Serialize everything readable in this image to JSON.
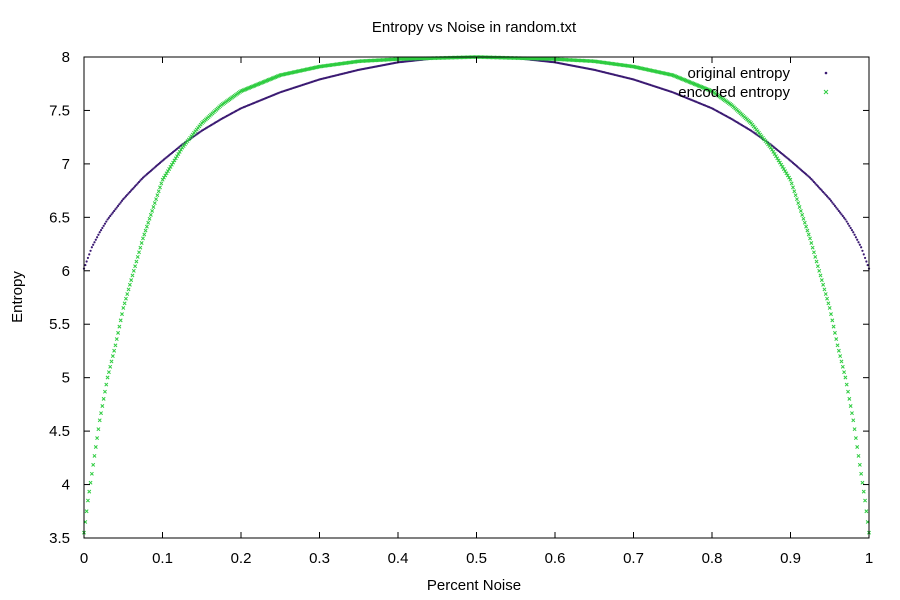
{
  "chart_data": {
    "type": "scatter",
    "title": "Entropy vs Noise in random.txt",
    "xlabel": "Percent Noise",
    "ylabel": "Entropy",
    "xlim": [
      0,
      1
    ],
    "ylim": [
      3.5,
      8
    ],
    "xticks": [
      0,
      0.1,
      0.2,
      0.3,
      0.4,
      0.5,
      0.6,
      0.7,
      0.8,
      0.9,
      1
    ],
    "xtick_labels": [
      "0",
      "0.1",
      "0.2",
      "0.3",
      "0.4",
      "0.5",
      "0.6",
      "0.7",
      "0.8",
      "0.9",
      "1"
    ],
    "yticks": [
      3.5,
      4,
      4.5,
      5,
      5.5,
      6,
      6.5,
      7,
      7.5,
      8
    ],
    "ytick_labels": [
      "3.5",
      "4",
      "4.5",
      "5",
      "5.5",
      "6",
      "6.5",
      "7",
      "7.5",
      "8"
    ],
    "grid": false,
    "legend_position": "top-right",
    "series": [
      {
        "name": "original entropy",
        "color": "#3b1a72",
        "marker": "dot",
        "x": [
          0,
          0.01,
          0.02,
          0.03,
          0.05,
          0.075,
          0.1,
          0.125,
          0.15,
          0.175,
          0.2,
          0.25,
          0.3,
          0.35,
          0.4,
          0.45,
          0.5,
          0.55,
          0.6,
          0.65,
          0.7,
          0.75,
          0.8,
          0.825,
          0.85,
          0.875,
          0.9,
          0.925,
          0.95,
          0.97,
          0.98,
          0.99,
          1
        ],
        "y": [
          6.02,
          6.22,
          6.36,
          6.48,
          6.67,
          6.87,
          7.03,
          7.18,
          7.31,
          7.42,
          7.52,
          7.67,
          7.79,
          7.88,
          7.95,
          7.99,
          8.0,
          7.99,
          7.95,
          7.88,
          7.79,
          7.67,
          7.52,
          7.42,
          7.31,
          7.18,
          7.03,
          6.87,
          6.67,
          6.48,
          6.36,
          6.22,
          6.02
        ]
      },
      {
        "name": "encoded entropy",
        "color": "#2ecc40",
        "marker": "x",
        "x": [
          0,
          0.005,
          0.01,
          0.02,
          0.03,
          0.04,
          0.05,
          0.075,
          0.1,
          0.125,
          0.15,
          0.175,
          0.2,
          0.25,
          0.3,
          0.35,
          0.4,
          0.45,
          0.5,
          0.55,
          0.6,
          0.65,
          0.7,
          0.75,
          0.8,
          0.825,
          0.85,
          0.875,
          0.9,
          0.925,
          0.95,
          0.96,
          0.97,
          0.98,
          0.99,
          0.995,
          1
        ],
        "y": [
          3.55,
          3.85,
          4.1,
          4.6,
          5.0,
          5.3,
          5.65,
          6.3,
          6.85,
          7.15,
          7.38,
          7.55,
          7.68,
          7.83,
          7.91,
          7.96,
          7.98,
          7.99,
          8.0,
          7.99,
          7.98,
          7.96,
          7.91,
          7.83,
          7.68,
          7.55,
          7.38,
          7.15,
          6.85,
          6.3,
          5.65,
          5.3,
          5.0,
          4.6,
          4.1,
          3.85,
          3.55
        ]
      }
    ]
  }
}
